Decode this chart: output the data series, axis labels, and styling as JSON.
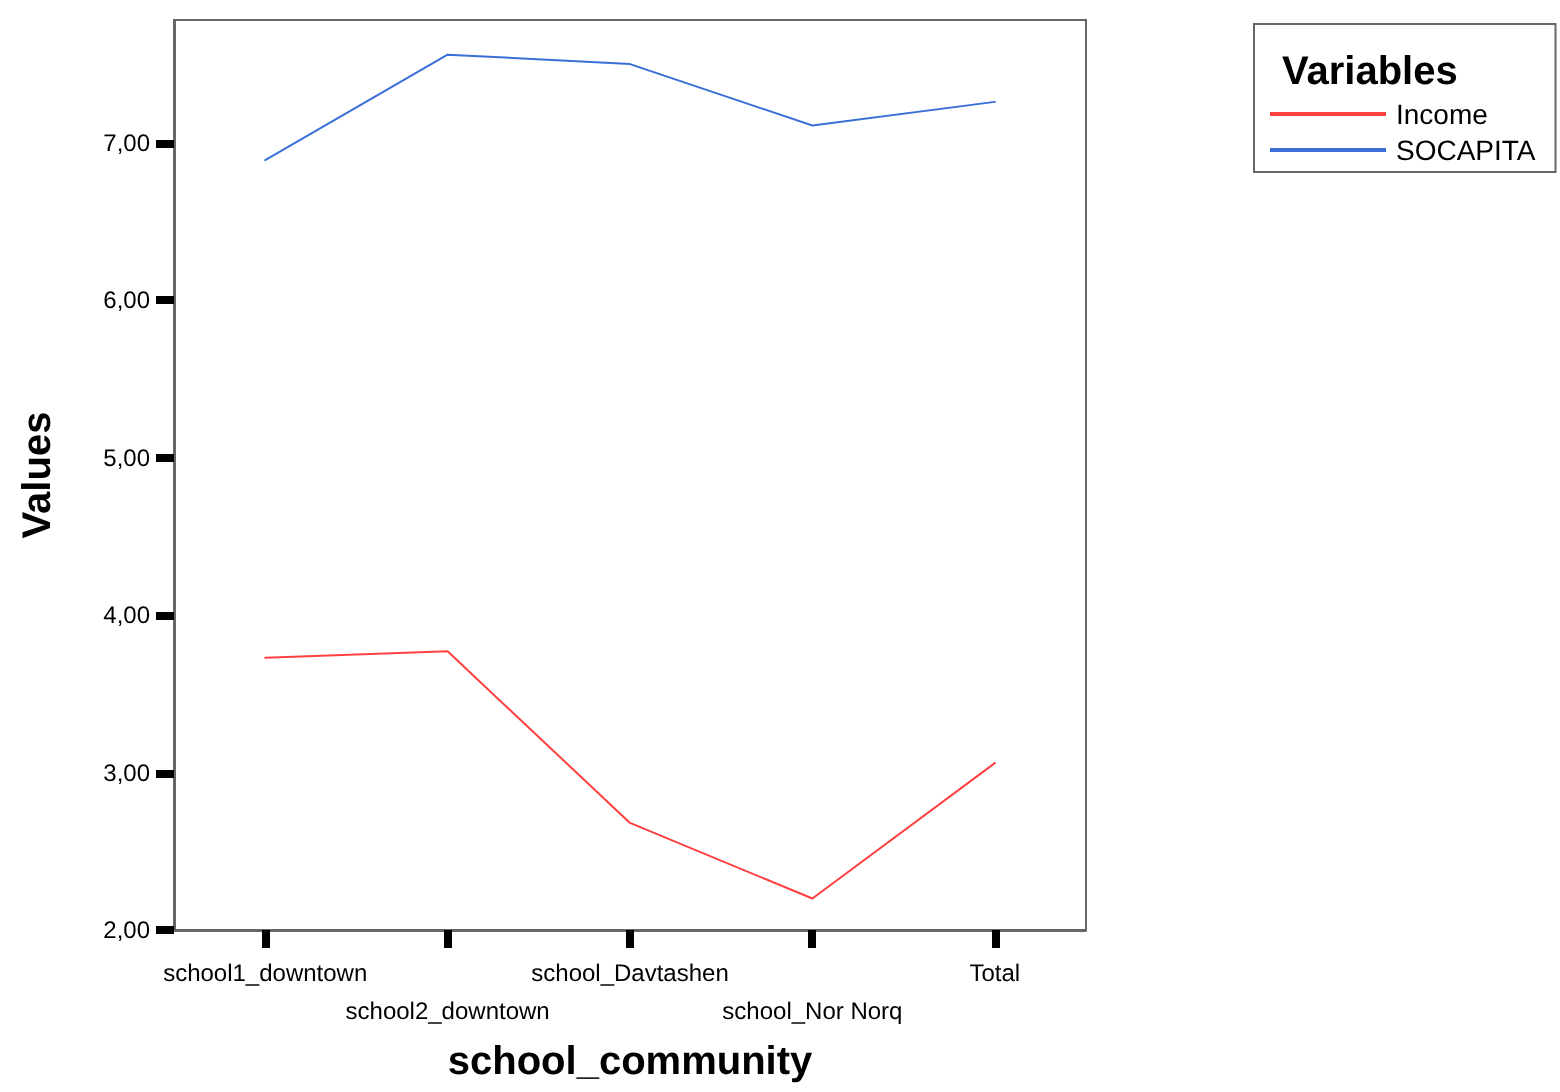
{
  "chart_data": {
    "type": "line",
    "xlabel": "school_community",
    "ylabel": "Values",
    "legend_title": "Variables",
    "legend": "top right",
    "categories": [
      "school1_downtown",
      "school2_downtown",
      "school_Davtashen",
      "school_Nor Norq",
      "Total"
    ],
    "series": [
      {
        "name": "Income",
        "color": "#ff4040",
        "values": [
          3.73,
          3.77,
          2.68,
          2.2,
          3.06
        ]
      },
      {
        "name": "SOCAPITA",
        "color": "#3a6fd8",
        "values": [
          6.89,
          7.56,
          7.5,
          7.11,
          7.26
        ]
      }
    ],
    "ylim": [
      2,
      7.78
    ],
    "yticks": [
      {
        "value": 2,
        "label": "2,00"
      },
      {
        "value": 3,
        "label": "3,00"
      },
      {
        "value": 4,
        "label": "4,00"
      },
      {
        "value": 5,
        "label": "5,00"
      },
      {
        "value": 6,
        "label": "6,00"
      },
      {
        "value": 7,
        "label": "7,00"
      }
    ],
    "grid": false,
    "marker": "none",
    "line_style": "solid"
  }
}
